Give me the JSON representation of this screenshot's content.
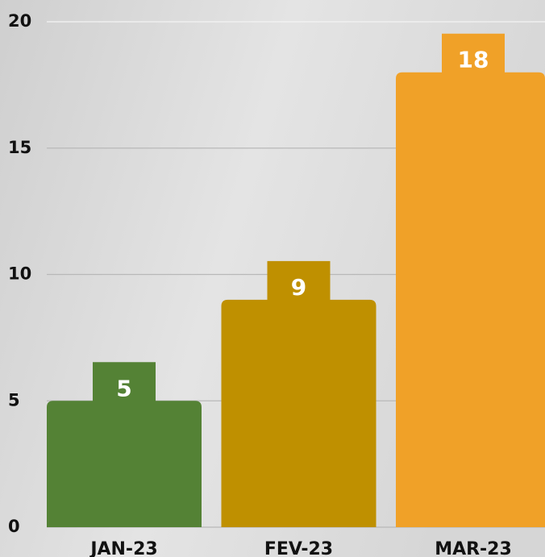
{
  "chart_data": {
    "type": "bar",
    "categories": [
      "JAN-23",
      "FEV-23",
      "MAR-23"
    ],
    "values": [
      5,
      9,
      18
    ],
    "colors": [
      "#548235",
      "#bf9000",
      "#f0a128"
    ],
    "ylim": [
      0,
      20
    ],
    "yticks": [
      0,
      5,
      10,
      15,
      20
    ],
    "grid": true
  }
}
